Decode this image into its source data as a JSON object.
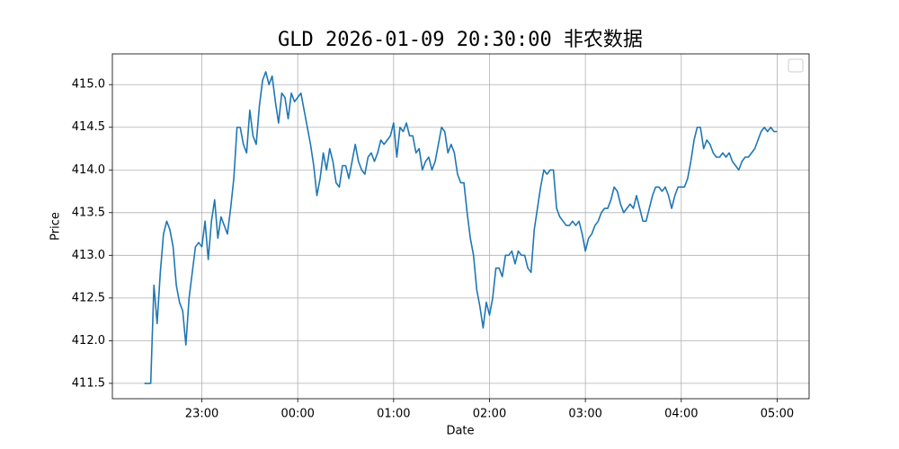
{
  "chart_data": {
    "type": "line",
    "title": "GLD 2026-01-09 20:30:00 非农数据",
    "x_label": "Date",
    "y_label": "Price",
    "color": "#1f77b4",
    "grid": true,
    "x": [
      "22:24",
      "22:26",
      "22:28",
      "22:30",
      "22:32",
      "22:34",
      "22:36",
      "22:38",
      "22:40",
      "22:42",
      "22:44",
      "22:46",
      "22:48",
      "22:50",
      "22:52",
      "22:54",
      "22:56",
      "22:58",
      "23:00",
      "23:02",
      "23:04",
      "23:06",
      "23:08",
      "23:10",
      "23:12",
      "23:14",
      "23:16",
      "23:18",
      "23:20",
      "23:22",
      "23:24",
      "23:26",
      "23:28",
      "23:30",
      "23:32",
      "23:34",
      "23:36",
      "23:38",
      "23:40",
      "23:42",
      "23:44",
      "23:46",
      "23:48",
      "23:50",
      "23:52",
      "23:54",
      "23:56",
      "23:58",
      "00:00",
      "00:02",
      "00:04",
      "00:06",
      "00:08",
      "00:10",
      "00:12",
      "00:14",
      "00:16",
      "00:18",
      "00:20",
      "00:22",
      "00:24",
      "00:26",
      "00:28",
      "00:30",
      "00:32",
      "00:34",
      "00:36",
      "00:38",
      "00:40",
      "00:42",
      "00:44",
      "00:46",
      "00:48",
      "00:50",
      "00:52",
      "00:54",
      "00:56",
      "00:58",
      "01:00",
      "01:02",
      "01:04",
      "01:06",
      "01:08",
      "01:10",
      "01:12",
      "01:14",
      "01:16",
      "01:18",
      "01:20",
      "01:22",
      "01:24",
      "01:26",
      "01:28",
      "01:30",
      "01:32",
      "01:34",
      "01:36",
      "01:38",
      "01:40",
      "01:42",
      "01:44",
      "01:46",
      "01:48",
      "01:50",
      "01:52",
      "01:54",
      "01:56",
      "01:58",
      "02:00",
      "02:02",
      "02:04",
      "02:06",
      "02:08",
      "02:10",
      "02:12",
      "02:14",
      "02:16",
      "02:18",
      "02:20",
      "02:22",
      "02:24",
      "02:26",
      "02:28",
      "02:30",
      "02:32",
      "02:34",
      "02:36",
      "02:38",
      "02:40",
      "02:42",
      "02:44",
      "02:46",
      "02:48",
      "02:50",
      "02:52",
      "02:54",
      "02:56",
      "02:58",
      "03:00",
      "03:02",
      "03:04",
      "03:06",
      "03:08",
      "03:10",
      "03:12",
      "03:14",
      "03:16",
      "03:18",
      "03:20",
      "03:22",
      "03:24",
      "03:26",
      "03:28",
      "03:30",
      "03:32",
      "03:34",
      "03:36",
      "03:38",
      "03:40",
      "03:42",
      "03:44",
      "03:46",
      "03:48",
      "03:50",
      "03:52",
      "03:54",
      "03:56",
      "03:58",
      "04:00",
      "04:02",
      "04:04",
      "04:06",
      "04:08",
      "04:10",
      "04:12",
      "04:14",
      "04:16",
      "04:18",
      "04:20",
      "04:22",
      "04:24",
      "04:26",
      "04:28",
      "04:30",
      "04:32",
      "04:34",
      "04:36",
      "04:38",
      "04:40",
      "04:42",
      "04:44",
      "04:46",
      "04:48",
      "04:50",
      "04:52",
      "04:54",
      "04:56",
      "04:58",
      "05:00"
    ],
    "values": [
      411.5,
      411.5,
      411.5,
      412.65,
      412.2,
      412.8,
      413.25,
      413.4,
      413.3,
      413.1,
      412.65,
      412.45,
      412.35,
      411.95,
      412.5,
      412.8,
      413.1,
      413.15,
      413.1,
      413.4,
      412.95,
      413.4,
      413.65,
      413.2,
      413.45,
      413.35,
      413.25,
      413.55,
      413.9,
      414.5,
      414.5,
      414.3,
      414.2,
      414.7,
      414.4,
      414.3,
      414.75,
      415.05,
      415.15,
      415.0,
      415.1,
      414.8,
      414.55,
      414.9,
      414.85,
      414.6,
      414.9,
      414.8,
      414.85,
      414.9,
      414.7,
      414.5,
      414.3,
      414.05,
      413.7,
      413.9,
      414.2,
      414.0,
      414.25,
      414.1,
      413.85,
      413.8,
      414.05,
      414.05,
      413.9,
      414.1,
      414.3,
      414.1,
      414.0,
      413.95,
      414.15,
      414.2,
      414.1,
      414.2,
      414.35,
      414.3,
      414.35,
      414.4,
      414.55,
      414.15,
      414.5,
      414.45,
      414.55,
      414.4,
      414.4,
      414.2,
      414.25,
      414.0,
      414.1,
      414.15,
      414.0,
      414.1,
      414.3,
      414.5,
      414.45,
      414.2,
      414.3,
      414.2,
      413.95,
      413.85,
      413.85,
      413.5,
      413.2,
      413.0,
      412.6,
      412.4,
      412.15,
      412.45,
      412.3,
      412.5,
      412.85,
      412.85,
      412.75,
      413.0,
      413.0,
      413.05,
      412.9,
      413.05,
      413.0,
      413.0,
      412.85,
      412.8,
      413.3,
      413.55,
      413.8,
      414.0,
      413.95,
      414.0,
      414.0,
      413.55,
      413.45,
      413.4,
      413.35,
      413.35,
      413.4,
      413.35,
      413.4,
      413.25,
      413.05,
      413.2,
      413.25,
      413.35,
      413.4,
      413.5,
      413.55,
      413.55,
      413.65,
      413.8,
      413.75,
      413.6,
      413.5,
      413.55,
      413.6,
      413.55,
      413.7,
      413.55,
      413.4,
      413.4,
      413.55,
      413.7,
      413.8,
      413.8,
      413.75,
      413.8,
      413.7,
      413.55,
      413.7,
      413.8,
      413.8,
      413.8,
      413.9,
      414.1,
      414.35,
      414.5,
      414.5,
      414.25,
      414.35,
      414.3,
      414.2,
      414.15,
      414.15,
      414.2,
      414.15,
      414.2,
      414.1,
      414.05,
      414.0,
      414.1,
      414.15,
      414.15,
      414.2,
      414.25,
      414.35,
      414.45,
      414.5,
      414.45,
      414.5,
      414.45,
      414.45
    ],
    "xlim": [
      "22:04",
      "05:20"
    ],
    "xticks": [
      "23:00",
      "00:00",
      "01:00",
      "02:00",
      "03:00",
      "04:00",
      "05:00"
    ],
    "ylim": [
      411.32,
      415.36
    ],
    "yticks": [
      411.5,
      {
        "value": 412,
        "label": "412.0"
      },
      412.5,
      {
        "value": 413,
        "label": "413.0"
      },
      413.5,
      {
        "value": 414,
        "label": "414.0"
      },
      414.5,
      {
        "value": 415,
        "label": "415.0"
      }
    ]
  }
}
